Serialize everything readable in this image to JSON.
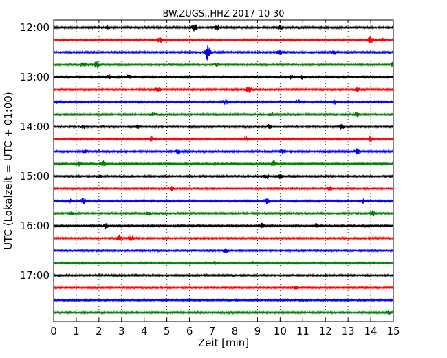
{
  "chart_data": {
    "type": "line",
    "title": "BW.ZUGS..HHZ 2017-10-30",
    "xlabel": "Zeit  [min]",
    "ylabel": "UTC (Lokalzeit = UTC + 01:00)",
    "xlim": [
      0,
      15
    ],
    "x_ticks": [
      0,
      1,
      2,
      3,
      4,
      5,
      6,
      7,
      8,
      9,
      10,
      11,
      12,
      13,
      14,
      15
    ],
    "x_tick_labels": [
      "0",
      "1",
      "2",
      "3",
      "4",
      "5",
      "6",
      "7",
      "8",
      "9",
      "10",
      "11",
      "12",
      "13",
      "14",
      "15"
    ],
    "y_tick_labels": [
      "12:00",
      "13:00",
      "14:00",
      "15:00",
      "16:00",
      "17:00"
    ],
    "y_tick_rows": [
      0,
      4,
      8,
      12,
      16,
      20
    ],
    "grid": "vertical dotted",
    "colors": [
      "#000000",
      "#ff0000",
      "#0000ff",
      "#008000"
    ],
    "rows": [
      {
        "start": "12:00",
        "color": "#000000",
        "events": [
          [
            2.4,
            2
          ],
          [
            6.2,
            6
          ],
          [
            7.2,
            5
          ],
          [
            10,
            3
          ]
        ]
      },
      {
        "start": "12:15",
        "color": "#ff0000",
        "events": [
          [
            4.7,
            4
          ],
          [
            14.0,
            5
          ],
          [
            14.5,
            3
          ]
        ]
      },
      {
        "start": "12:30",
        "color": "#0000ff",
        "events": [
          [
            6.8,
            14
          ],
          [
            10,
            4
          ],
          [
            12.4,
            3
          ]
        ]
      },
      {
        "start": "12:45",
        "color": "#008000",
        "events": [
          [
            1.3,
            4
          ],
          [
            1.9,
            5
          ],
          [
            7.2,
            3
          ],
          [
            15,
            4
          ]
        ]
      },
      {
        "start": "13:00",
        "color": "#000000",
        "events": [
          [
            2.5,
            4
          ],
          [
            3.3,
            3
          ],
          [
            10.5,
            4
          ],
          [
            11,
            3
          ]
        ]
      },
      {
        "start": "13:15",
        "color": "#ff0000",
        "events": [
          [
            4.6,
            4
          ],
          [
            8.6,
            5
          ],
          [
            13.4,
            3
          ]
        ]
      },
      {
        "start": "13:30",
        "color": "#0000ff",
        "events": [
          [
            0.2,
            3
          ],
          [
            7.6,
            4
          ],
          [
            10.8,
            3
          ],
          [
            12.4,
            3
          ]
        ]
      },
      {
        "start": "13:45",
        "color": "#008000",
        "events": [
          [
            4.4,
            3
          ],
          [
            9.6,
            3
          ],
          [
            13.4,
            4
          ]
        ]
      },
      {
        "start": "14:00",
        "color": "#000000",
        "events": [
          [
            1.3,
            3
          ],
          [
            3.7,
            3
          ],
          [
            9.5,
            3
          ],
          [
            12.7,
            4
          ]
        ]
      },
      {
        "start": "14:15",
        "color": "#ff0000",
        "events": [
          [
            4.3,
            3
          ],
          [
            8.5,
            4
          ],
          [
            14.0,
            4
          ]
        ]
      },
      {
        "start": "14:30",
        "color": "#0000ff",
        "events": [
          [
            1.4,
            3
          ],
          [
            5.5,
            4
          ],
          [
            10.1,
            3
          ],
          [
            13.4,
            4
          ]
        ]
      },
      {
        "start": "14:45",
        "color": "#008000",
        "events": [
          [
            1.1,
            3
          ],
          [
            2.2,
            4
          ],
          [
            9.7,
            5
          ]
        ]
      },
      {
        "start": "15:00",
        "color": "#000000",
        "events": [
          [
            2.0,
            3
          ],
          [
            9.4,
            4
          ],
          [
            10.0,
            4
          ]
        ]
      },
      {
        "start": "15:15",
        "color": "#ff0000",
        "events": [
          [
            5.2,
            3
          ],
          [
            12.2,
            3
          ]
        ]
      },
      {
        "start": "15:30",
        "color": "#0000ff",
        "events": [
          [
            0.7,
            3
          ],
          [
            1.3,
            5
          ],
          [
            9.4,
            4
          ],
          [
            13.7,
            4
          ]
        ]
      },
      {
        "start": "15:45",
        "color": "#008000",
        "events": [
          [
            0.8,
            3
          ],
          [
            4.2,
            3
          ],
          [
            14.1,
            4
          ]
        ]
      },
      {
        "start": "16:00",
        "color": "#000000",
        "events": [
          [
            2.3,
            3
          ],
          [
            9.2,
            4
          ],
          [
            11.6,
            3
          ]
        ]
      },
      {
        "start": "16:15",
        "color": "#ff0000",
        "events": [
          [
            2.9,
            5
          ],
          [
            3.4,
            4
          ]
        ]
      },
      {
        "start": "16:30",
        "color": "#0000ff",
        "events": [
          [
            7.6,
            3
          ]
        ]
      },
      {
        "start": "16:45",
        "color": "#008000",
        "events": [
          [
            7.1,
            2
          ],
          [
            8.8,
            2
          ]
        ]
      },
      {
        "start": "17:00",
        "color": "#000000",
        "events": []
      },
      {
        "start": "17:15",
        "color": "#ff0000",
        "events": [
          [
            10.7,
            3
          ]
        ]
      },
      {
        "start": "17:30",
        "color": "#0000ff",
        "events": []
      },
      {
        "start": "17:45",
        "color": "#008000",
        "events": [
          [
            14.8,
            3
          ]
        ]
      }
    ]
  }
}
